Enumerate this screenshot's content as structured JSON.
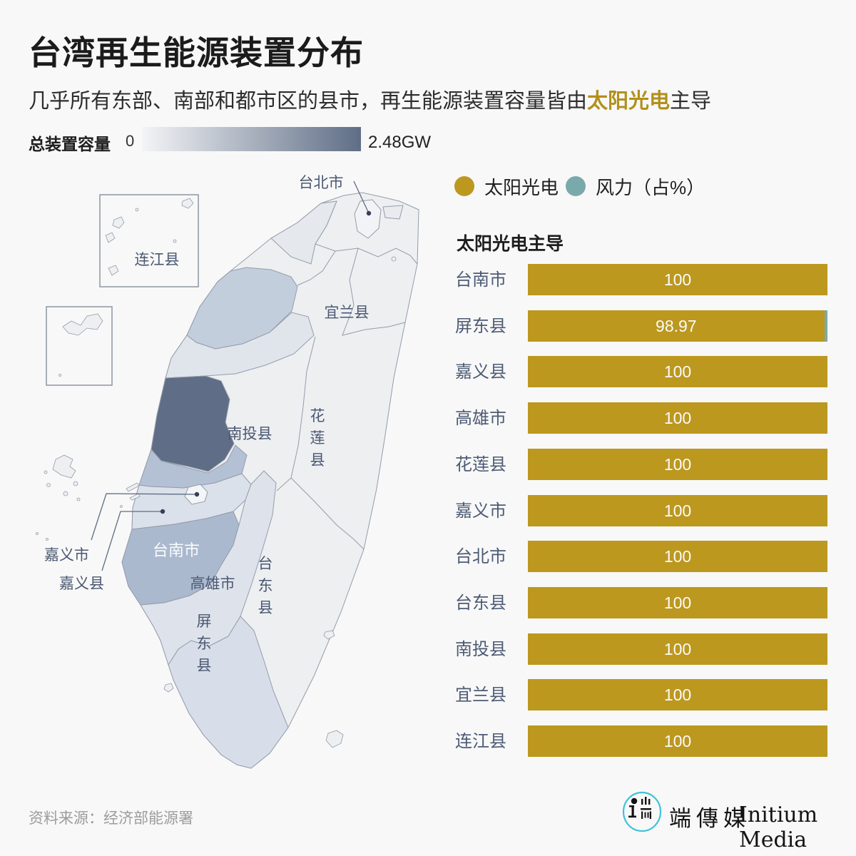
{
  "header": {
    "title": "台湾再生能源装置分布",
    "subtitle_prefix": "几乎所有东部、南部和都市区的县市，再生能源装置容量皆由",
    "subtitle_highlight": "太阳光电",
    "subtitle_suffix": "主导",
    "highlight_color": "#b2901b"
  },
  "scale_legend": {
    "label": "总装置容量",
    "min": "0",
    "max": "2.48GW",
    "gradient_start": "#f3f4f6",
    "gradient_end": "#5f6e86"
  },
  "series_legend": [
    {
      "label": "太阳光电",
      "color": "#bc981f"
    },
    {
      "label": "风力（占%）",
      "color": "#7aa9ab"
    }
  ],
  "bar_section": {
    "heading": "太阳光电主导"
  },
  "chart_data": {
    "type": "bar",
    "orientation": "horizontal",
    "title": "太阳光电主导",
    "categories": [
      "台南市",
      "屏东县",
      "嘉义县",
      "高雄市",
      "花莲县",
      "嘉义市",
      "台北市",
      "台东县",
      "南投县",
      "宜兰县",
      "连江县"
    ],
    "series": [
      {
        "name": "太阳光电",
        "color": "#bc981f",
        "values": [
          100,
          98.97,
          100,
          100,
          100,
          100,
          100,
          100,
          100,
          100,
          100
        ]
      },
      {
        "name": "风力（占%）",
        "color": "#7aa9ab",
        "values": [
          0,
          1.03,
          0,
          0,
          0,
          0,
          0,
          0,
          0,
          0,
          0
        ]
      }
    ],
    "value_labels": [
      "100",
      "98.97",
      "100",
      "100",
      "100",
      "100",
      "100",
      "100",
      "100",
      "100",
      "100"
    ],
    "xlim": [
      0,
      100
    ],
    "legend_position": "top"
  },
  "map": {
    "labels": {
      "taipei": "台北市",
      "lienchiang": "连江县",
      "yilan": "宜兰县",
      "nantou": "南投县",
      "hualien": "花莲县",
      "taitung": "台东县",
      "pingtung": "屏东县",
      "tainan": "台南市",
      "kaohsiung": "高雄市",
      "chiayi_city": "嘉义市",
      "chiayi_county": "嘉义县"
    },
    "region_fills": {
      "taiwan_base": "#edeff1",
      "taipei": "#f2f3f6",
      "keelung": "#e9ebef",
      "taoyuan": "#e5e9ee",
      "miaoli": "#c3cedd",
      "taichung": "#e0e5ec",
      "changhua": "#5f6e86",
      "yunlin": "#b4c1d4",
      "chiayi_county": "#dbe1ea",
      "chiayi_city": "#f4f5f7",
      "tainan": "#aab9ce",
      "kaohsiung": "#dee3eb",
      "pingtung": "#d7dee9",
      "islands": "#edeff1"
    }
  },
  "footer": {
    "source": "资料来源：经济部能源署",
    "brand_zh": "端傳媒",
    "brand_en": "Initium Media",
    "logo_ring_color": "#3ec3da"
  }
}
